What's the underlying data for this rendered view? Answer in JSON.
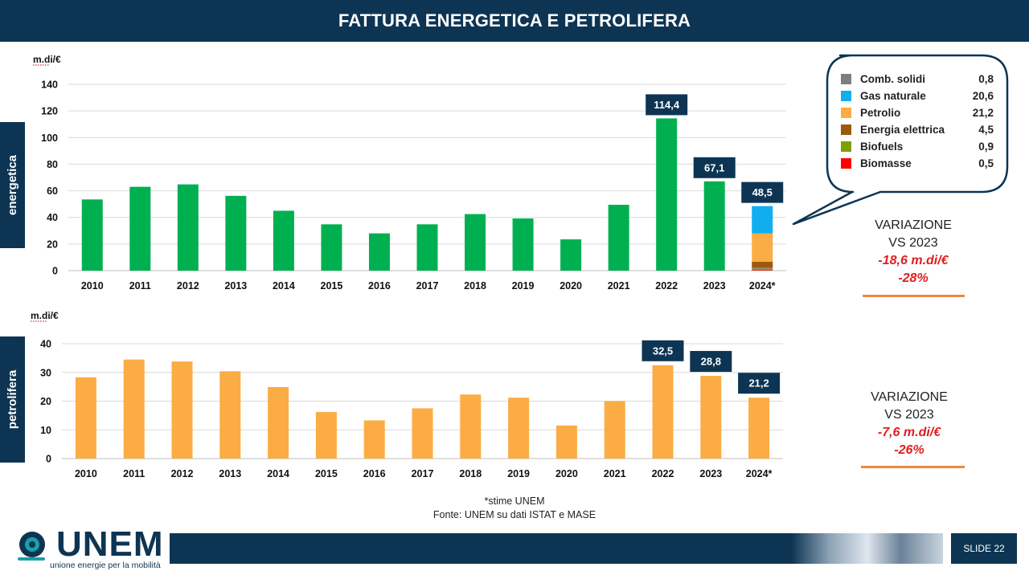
{
  "slide": {
    "title": "FATTURA ENERGETICA E PETROLIFERA",
    "slide_number": "SLIDE 22"
  },
  "side_tabs": {
    "top": "energetica",
    "bottom": "petrolifera"
  },
  "chart_data": [
    {
      "type": "bar",
      "unit_label": "m.di/€",
      "categories": [
        "2010",
        "2011",
        "2012",
        "2013",
        "2014",
        "2015",
        "2016",
        "2017",
        "2018",
        "2019",
        "2020",
        "2021",
        "2022",
        "2023",
        "2024*"
      ],
      "values": [
        53.5,
        63,
        64.8,
        56.2,
        45,
        34.8,
        28,
        34.8,
        42.5,
        39.2,
        23.5,
        49.5,
        114.4,
        67.1,
        48.5
      ],
      "labels": {
        "2022": "114,4",
        "2023": "67,1",
        "2024*": "48,5"
      },
      "ylim": [
        0,
        140
      ],
      "yticks": [
        0,
        20,
        40,
        60,
        80,
        100,
        120,
        140
      ],
      "color": "#00b050",
      "grid": true,
      "stacked_last": {
        "category": "2024*",
        "segments": [
          {
            "name": "Biomasse",
            "value": 0.5,
            "color": "#ff0000"
          },
          {
            "name": "Biofuels",
            "value": 0.9,
            "color": "#7f9f00"
          },
          {
            "name": "Comb. solidi",
            "value": 0.8,
            "color": "#7f7f7f"
          },
          {
            "name": "Energia elettrica",
            "value": 4.5,
            "color": "#9c5a0e"
          },
          {
            "name": "Petrolio",
            "value": 21.2,
            "color": "#fbac45"
          },
          {
            "name": "Gas naturale",
            "value": 20.6,
            "color": "#11aeef"
          }
        ]
      }
    },
    {
      "type": "bar",
      "unit_label": "m.di/€",
      "categories": [
        "2010",
        "2011",
        "2012",
        "2013",
        "2014",
        "2015",
        "2016",
        "2017",
        "2018",
        "2019",
        "2020",
        "2021",
        "2022",
        "2023",
        "2024*"
      ],
      "values": [
        28.3,
        34.5,
        33.8,
        30.4,
        24.9,
        16.2,
        13.3,
        17.5,
        22.3,
        21.2,
        11.5,
        20,
        32.5,
        28.8,
        21.2
      ],
      "labels": {
        "2022": "32,5",
        "2023": "28,8",
        "2024*": "21,2"
      },
      "ylim": [
        0,
        40
      ],
      "yticks": [
        0,
        10,
        20,
        30,
        40
      ],
      "color": "#fbac45",
      "grid": true
    }
  ],
  "breakdown": [
    {
      "name": "Comb. solidi",
      "value": "0,8",
      "color": "#7f7f7f"
    },
    {
      "name": "Gas naturale",
      "value": "20,6",
      "color": "#11aeef"
    },
    {
      "name": "Petrolio",
      "value": "21,2",
      "color": "#fbac45"
    },
    {
      "name": "Energia elettrica",
      "value": "4,5",
      "color": "#9c5a0e"
    },
    {
      "name": "Biofuels",
      "value": "0,9",
      "color": "#7f9f00"
    },
    {
      "name": "Biomasse",
      "value": "0,5",
      "color": "#ff0000"
    }
  ],
  "variation_top": {
    "line1": "VARIAZIONE",
    "line2": "VS 2023",
    "abs": "-18,6 m.di/€",
    "pct": "-28%"
  },
  "variation_bottom": {
    "line1": "VARIAZIONE",
    "line2": "VS 2023",
    "abs": "-7,6 m.di/€",
    "pct": "-26%"
  },
  "footnotes": {
    "estimate": "*stime UNEM",
    "source": "Fonte: UNEM su dati ISTAT e MASE"
  },
  "logo": {
    "name": "UNEM",
    "tagline": "unione energie per la mobilità"
  },
  "colors": {
    "navy": "#0d3553",
    "accent_orange": "#ee8a3d",
    "negative_red": "#e01e1e"
  }
}
